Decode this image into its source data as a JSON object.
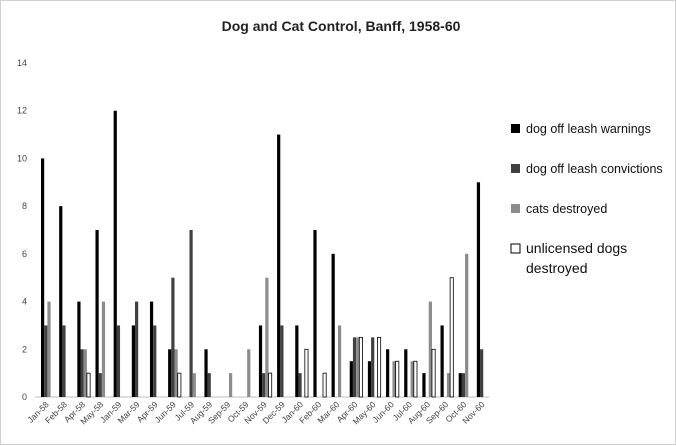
{
  "chart_data": {
    "type": "bar",
    "title": "Dog and Cat Control, Banff, 1958-60",
    "xlabel": "",
    "ylabel": "",
    "ylim": [
      0,
      14
    ],
    "yticks": [
      0,
      2,
      4,
      6,
      8,
      10,
      12,
      14
    ],
    "grid": false,
    "legend_position": "right",
    "categories": [
      "Jan-58",
      "Feb-58",
      "Apr-58",
      "May-58",
      "Jan-59",
      "Mar-59",
      "Apr-59",
      "Jun-59",
      "Jul-59",
      "Aug-59",
      "Sep-59",
      "Oct-59",
      "Nov-59",
      "Dec-59",
      "Jan-60",
      "Feb-60",
      "Mar-60",
      "Apr-60",
      "May-60",
      "Jun-60",
      "Jul-60",
      "Aug-60",
      "Sep-60",
      "Oct-60",
      "Nov-60"
    ],
    "series": [
      {
        "name": "dog off leash warnings",
        "color": "#000000",
        "values": [
          10,
          8,
          4,
          7,
          12,
          3,
          4,
          2,
          0,
          2,
          0,
          0,
          3,
          11,
          3,
          7,
          6,
          1.5,
          1.5,
          2,
          2,
          1,
          3,
          1,
          9
        ]
      },
      {
        "name": "dog off leash convictions",
        "color": "#404040",
        "values": [
          3,
          3,
          2,
          1,
          3,
          4,
          3,
          5,
          7,
          1,
          0,
          0,
          1,
          3,
          1,
          0,
          0,
          2.5,
          2.5,
          0,
          0,
          0,
          0,
          1,
          2
        ]
      },
      {
        "name": "cats destroyed",
        "color": "#8c8c8c",
        "values": [
          4,
          0,
          2,
          4,
          0,
          0,
          0,
          2,
          1,
          0,
          1,
          2,
          5,
          0,
          0,
          0,
          3,
          2.5,
          0,
          1.5,
          1.5,
          4,
          1,
          6,
          0
        ]
      },
      {
        "name": "unlicensed dogs destroyed",
        "color": "#ffffff",
        "values": [
          0,
          0,
          1,
          0,
          0,
          0,
          0,
          1,
          0,
          0,
          0,
          0,
          1,
          0,
          2,
          1,
          0,
          2.5,
          2.5,
          1.5,
          1.5,
          2,
          5,
          0,
          0
        ]
      }
    ]
  }
}
